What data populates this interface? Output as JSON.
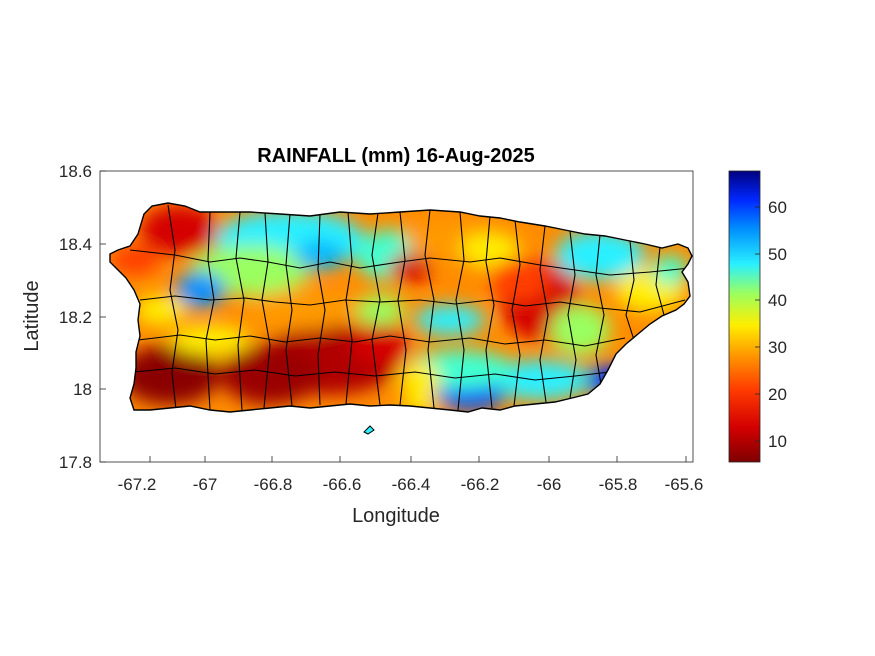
{
  "map": {
    "title": "RAINFALL (mm) 16-Aug-2025",
    "xlabel": "Longitude",
    "ylabel": "Latitude",
    "x_ticks": [
      "-67.2",
      "-67",
      "-66.8",
      "-66.6",
      "-66.4",
      "-66.2",
      "-66",
      "-65.8",
      "-65.6"
    ],
    "y_ticks": [
      "18.6",
      "18.4",
      "18.2",
      "18",
      "17.8"
    ],
    "x_range": [
      -67.3,
      -65.59
    ],
    "y_range": [
      17.8,
      18.6
    ],
    "colorbar": {
      "ticks": [
        "60",
        "50",
        "40",
        "30",
        "20",
        "10"
      ],
      "range": [
        5,
        68
      ],
      "colormap": "jet (dark red low, dark blue high)"
    }
  }
}
